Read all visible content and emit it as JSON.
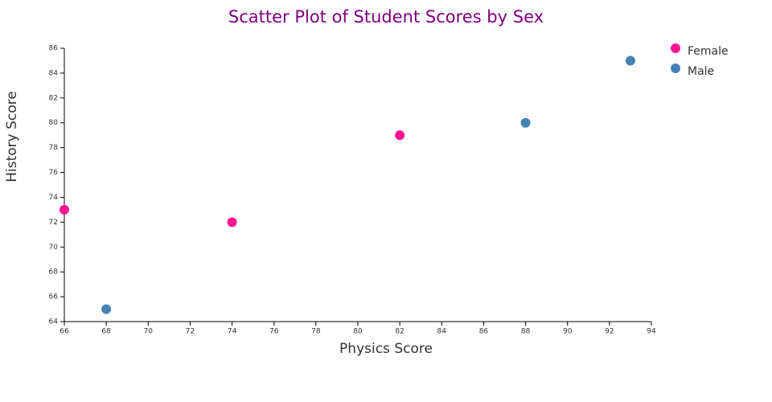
{
  "chart_data": {
    "type": "scatter",
    "title": "Scatter Plot of Student Scores by Sex",
    "x_label": "Physics Score",
    "y_label": "History Score",
    "series": [
      {
        "name": "Female",
        "color": "#ff1493",
        "x": [
          66,
          74,
          82
        ],
        "values": [
          73,
          72,
          79
        ]
      },
      {
        "name": "Male",
        "color": "#4682b4",
        "x": [
          68,
          88,
          93
        ],
        "values": [
          65,
          80,
          85
        ]
      }
    ],
    "xlim": [
      66,
      94
    ],
    "xticks": [
      66,
      68,
      70,
      72,
      74,
      76,
      78,
      80,
      82,
      84,
      86,
      88,
      90,
      92,
      94
    ],
    "ylim": [
      64,
      86
    ],
    "yticks": [
      64,
      66,
      68,
      70,
      72,
      74,
      76,
      78,
      80,
      82,
      84,
      86
    ],
    "grid": false,
    "legend": "right",
    "title_color": "#800080"
  }
}
